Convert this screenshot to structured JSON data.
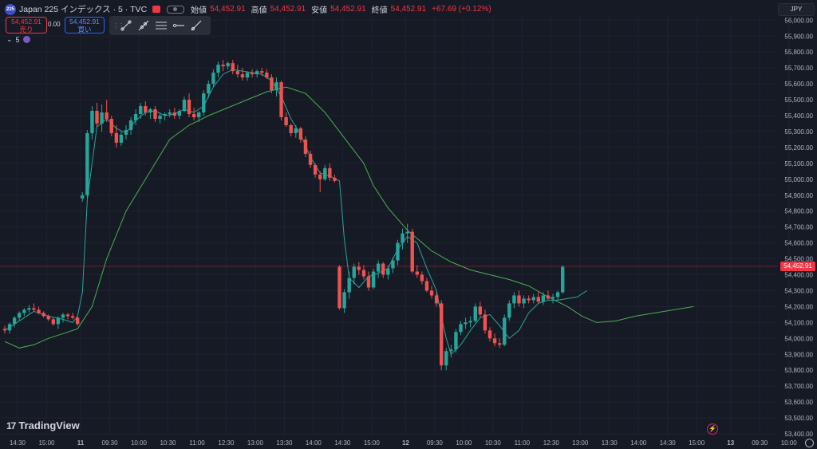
{
  "header": {
    "symbol_badge": "225",
    "title": "Japan 225 インデックス · 5 · TVC",
    "ohlc": [
      {
        "key": "始値",
        "value": "54,452.91"
      },
      {
        "key": "高値",
        "value": "54,452.91"
      },
      {
        "key": "安値",
        "value": "54,452.91"
      },
      {
        "key": "終値",
        "value": "54,452.91"
      }
    ],
    "change": "+67.69 (+0.12%)"
  },
  "trade": {
    "sell_price": "54,452.91",
    "sell_label": "売り",
    "spread": "0.00",
    "buy_price": "54,452.91",
    "buy_label": "買い"
  },
  "toolbar": {
    "tools": [
      "trend-line-icon",
      "ray-icon",
      "parallel-channel-icon",
      "horizontal-ray-icon",
      "extended-line-icon"
    ]
  },
  "indicator": {
    "chevron": "⌄",
    "label": "5"
  },
  "currency": "JPY",
  "price_label": "54,452.91",
  "brand": {
    "mark": "17",
    "name": "TradingView"
  },
  "colors": {
    "up": "#26a69a",
    "down": "#ef5350",
    "bg": "#161a25",
    "ma_fast": "#26a69a",
    "ma_slow": "#4caf50",
    "price_line": "#f23645"
  },
  "chart_data": {
    "type": "candlestick",
    "ylim": [
      53400,
      56050
    ],
    "y_ticks": [
      "56,000.00",
      "55,900.00",
      "55,800.00",
      "55,700.00",
      "55,600.00",
      "55,500.00",
      "55,400.00",
      "55,300.00",
      "55,200.00",
      "55,100.00",
      "55,000.00",
      "54,900.00",
      "54,800.00",
      "54,700.00",
      "54,600.00",
      "54,500.00",
      "54,400.00",
      "54,300.00",
      "54,200.00",
      "54,100.00",
      "54,000.00",
      "53,900.00",
      "53,800.00",
      "53,700.00",
      "53,600.00",
      "53,500.00",
      "53,400.00"
    ],
    "y_tick_values": [
      56000,
      55900,
      55800,
      55700,
      55600,
      55500,
      55400,
      55300,
      55200,
      55100,
      55000,
      54900,
      54800,
      54700,
      54600,
      54500,
      54400,
      54300,
      54200,
      54100,
      54000,
      53900,
      53800,
      53700,
      53600,
      53500,
      53400
    ],
    "x_ticks": [
      {
        "label": "14:30",
        "i": 0,
        "bold": false
      },
      {
        "label": "15:00",
        "i": 6,
        "bold": false
      },
      {
        "label": "11",
        "i": 13,
        "bold": true
      },
      {
        "label": "09:30",
        "i": 19,
        "bold": false
      },
      {
        "label": "10:00",
        "i": 25,
        "bold": false
      },
      {
        "label": "10:30",
        "i": 31,
        "bold": false
      },
      {
        "label": "11:00",
        "i": 37,
        "bold": false
      },
      {
        "label": "12:30",
        "i": 43,
        "bold": false
      },
      {
        "label": "13:00",
        "i": 49,
        "bold": false
      },
      {
        "label": "13:30",
        "i": 55,
        "bold": false
      },
      {
        "label": "14:00",
        "i": 61,
        "bold": false
      },
      {
        "label": "14:30",
        "i": 67,
        "bold": false
      },
      {
        "label": "15:00",
        "i": 73,
        "bold": false
      },
      {
        "label": "12",
        "i": 80,
        "bold": true
      },
      {
        "label": "09:30",
        "i": 86,
        "bold": false
      },
      {
        "label": "10:00",
        "i": 92,
        "bold": false
      },
      {
        "label": "10:30",
        "i": 98,
        "bold": false
      },
      {
        "label": "11:00",
        "i": 104,
        "bold": false
      },
      {
        "label": "12:30",
        "i": 110,
        "bold": false
      },
      {
        "label": "13:00",
        "i": 116,
        "bold": false
      },
      {
        "label": "13:30",
        "i": 122,
        "bold": false
      },
      {
        "label": "14:00",
        "i": 128,
        "bold": false
      },
      {
        "label": "14:30",
        "i": 134,
        "bold": false
      },
      {
        "label": "15:00",
        "i": 140,
        "bold": false
      },
      {
        "label": "13",
        "i": 147,
        "bold": true
      },
      {
        "label": "09:30",
        "i": 153,
        "bold": false
      },
      {
        "label": "10:00",
        "i": 159,
        "bold": false
      }
    ],
    "last_price": 54452.91,
    "candles": [
      [
        54060,
        54080,
        54030,
        54050
      ],
      [
        54050,
        54100,
        54030,
        54090
      ],
      [
        54090,
        54140,
        54070,
        54130
      ],
      [
        54130,
        54170,
        54110,
        54160
      ],
      [
        54160,
        54190,
        54140,
        54180
      ],
      [
        54180,
        54210,
        54160,
        54190
      ],
      [
        54190,
        54220,
        54170,
        54180
      ],
      [
        54180,
        54200,
        54150,
        54160
      ],
      [
        54160,
        54170,
        54130,
        54140
      ],
      [
        54140,
        54150,
        54110,
        54120
      ],
      [
        54120,
        54130,
        54080,
        54090
      ],
      [
        54090,
        54140,
        54060,
        54130
      ],
      [
        54130,
        54160,
        54100,
        54150
      ],
      [
        54150,
        54160,
        54120,
        54140
      ],
      [
        54140,
        54160,
        54120,
        54130
      ],
      [
        54130,
        54140,
        54080,
        54090
      ],
      [
        54880,
        54920,
        54860,
        54900
      ],
      [
        54900,
        55310,
        54880,
        55290
      ],
      [
        55290,
        55460,
        55250,
        55430
      ],
      [
        55430,
        55480,
        55330,
        55350
      ],
      [
        55350,
        55470,
        55300,
        55420
      ],
      [
        55420,
        55500,
        55360,
        55380
      ],
      [
        55380,
        55400,
        55270,
        55290
      ],
      [
        55290,
        55340,
        55200,
        55230
      ],
      [
        55230,
        55300,
        55210,
        55280
      ],
      [
        55280,
        55340,
        55250,
        55310
      ],
      [
        55310,
        55390,
        55280,
        55370
      ],
      [
        55370,
        55440,
        55340,
        55410
      ],
      [
        55410,
        55480,
        55380,
        55460
      ],
      [
        55460,
        55490,
        55400,
        55420
      ],
      [
        55420,
        55450,
        55380,
        55440
      ],
      [
        55440,
        55460,
        55360,
        55380
      ],
      [
        55380,
        55420,
        55350,
        55400
      ],
      [
        55400,
        55420,
        55370,
        55410
      ],
      [
        55410,
        55440,
        55390,
        55420
      ],
      [
        55420,
        55450,
        55380,
        55400
      ],
      [
        55400,
        55440,
        55380,
        55430
      ],
      [
        55430,
        55520,
        55420,
        55500
      ],
      [
        55500,
        55540,
        55390,
        55410
      ],
      [
        55410,
        55450,
        55370,
        55390
      ],
      [
        55390,
        55430,
        55360,
        55420
      ],
      [
        55420,
        55560,
        55400,
        55540
      ],
      [
        55540,
        55620,
        55510,
        55600
      ],
      [
        55600,
        55690,
        55580,
        55670
      ],
      [
        55670,
        55740,
        55640,
        55720
      ],
      [
        55720,
        55750,
        55680,
        55710
      ],
      [
        55710,
        55740,
        55690,
        55730
      ],
      [
        55730,
        55750,
        55660,
        55680
      ],
      [
        55680,
        55720,
        55640,
        55660
      ],
      [
        55660,
        55700,
        55620,
        55640
      ],
      [
        55640,
        55680,
        55620,
        55670
      ],
      [
        55670,
        55690,
        55640,
        55660
      ],
      [
        55660,
        55690,
        55640,
        55680
      ],
      [
        55680,
        55700,
        55650,
        55670
      ],
      [
        55670,
        55690,
        55630,
        55640
      ],
      [
        55640,
        55660,
        55540,
        55560
      ],
      [
        55560,
        55640,
        55520,
        55610
      ],
      [
        55610,
        55620,
        55370,
        55390
      ],
      [
        55390,
        55420,
        55330,
        55340
      ],
      [
        55340,
        55350,
        55270,
        55290
      ],
      [
        55290,
        55340,
        55260,
        55320
      ],
      [
        55320,
        55330,
        55230,
        55250
      ],
      [
        55250,
        55270,
        55140,
        55160
      ],
      [
        55160,
        55180,
        55070,
        55090
      ],
      [
        55090,
        55100,
        55010,
        55030
      ],
      [
        55030,
        55050,
        54920,
        55000
      ],
      [
        55000,
        55090,
        54990,
        55070
      ],
      [
        55070,
        55100,
        54990,
        55010
      ],
      [
        55010,
        55030,
        54980,
        54990
      ],
      [
        54450,
        54460,
        54180,
        54190
      ],
      [
        54190,
        54310,
        54160,
        54290
      ],
      [
        54290,
        54420,
        54250,
        54380
      ],
      [
        54380,
        54470,
        54340,
        54450
      ],
      [
        54450,
        54480,
        54400,
        54430
      ],
      [
        54430,
        54460,
        54370,
        54390
      ],
      [
        54390,
        54420,
        54300,
        54320
      ],
      [
        54320,
        54440,
        54310,
        54420
      ],
      [
        54420,
        54490,
        54380,
        54470
      ],
      [
        54470,
        54480,
        54380,
        54400
      ],
      [
        54400,
        54460,
        54370,
        54440
      ],
      [
        54440,
        54510,
        54410,
        54490
      ],
      [
        54490,
        54620,
        54460,
        54600
      ],
      [
        54600,
        54690,
        54560,
        54660
      ],
      [
        54660,
        54720,
        54600,
        54670
      ],
      [
        54670,
        54690,
        54410,
        54420
      ],
      [
        54420,
        54460,
        54380,
        54400
      ],
      [
        54400,
        54420,
        54340,
        54360
      ],
      [
        54360,
        54380,
        54290,
        54300
      ],
      [
        54300,
        54330,
        54250,
        54270
      ],
      [
        54270,
        54290,
        54200,
        54220
      ],
      [
        54220,
        54240,
        53800,
        53830
      ],
      [
        53830,
        53940,
        53800,
        53920
      ],
      [
        53920,
        53960,
        53880,
        53930
      ],
      [
        53930,
        54060,
        53910,
        54040
      ],
      [
        54040,
        54110,
        54020,
        54090
      ],
      [
        54090,
        54130,
        54060,
        54100
      ],
      [
        54100,
        54140,
        54070,
        54110
      ],
      [
        54110,
        54220,
        54100,
        54200
      ],
      [
        54200,
        54230,
        54130,
        54150
      ],
      [
        54150,
        54180,
        54030,
        54050
      ],
      [
        54050,
        54070,
        53980,
        54000
      ],
      [
        54000,
        54030,
        53950,
        53970
      ],
      [
        53970,
        54000,
        53940,
        53960
      ],
      [
        53960,
        54150,
        53950,
        54130
      ],
      [
        54130,
        54240,
        54110,
        54220
      ],
      [
        54220,
        54290,
        54190,
        54270
      ],
      [
        54270,
        54300,
        54200,
        54220
      ],
      [
        54220,
        54270,
        54190,
        54250
      ],
      [
        54250,
        54270,
        54220,
        54240
      ],
      [
        54240,
        54280,
        54220,
        54260
      ],
      [
        54260,
        54290,
        54220,
        54230
      ],
      [
        54230,
        54290,
        54210,
        54270
      ],
      [
        54270,
        54300,
        54240,
        54250
      ],
      [
        54250,
        54280,
        54220,
        54260
      ],
      [
        54260,
        54300,
        54240,
        54290
      ],
      [
        54290,
        54460,
        54280,
        54450
      ]
    ],
    "ma_slow": [
      [
        0,
        53980
      ],
      [
        3,
        53940
      ],
      [
        6,
        53960
      ],
      [
        9,
        54000
      ],
      [
        12,
        54030
      ],
      [
        15,
        54060
      ],
      [
        18,
        54200
      ],
      [
        21,
        54500
      ],
      [
        25,
        54800
      ],
      [
        30,
        55050
      ],
      [
        34,
        55250
      ],
      [
        38,
        55340
      ],
      [
        42,
        55400
      ],
      [
        46,
        55450
      ],
      [
        50,
        55500
      ],
      [
        54,
        55550
      ],
      [
        58,
        55580
      ],
      [
        62,
        55540
      ],
      [
        66,
        55420
      ],
      [
        70,
        55260
      ],
      [
        74,
        55100
      ],
      [
        76,
        54960
      ],
      [
        79,
        54820
      ],
      [
        83,
        54680
      ],
      [
        88,
        54550
      ],
      [
        92,
        54480
      ],
      [
        96,
        54430
      ],
      [
        100,
        54400
      ],
      [
        104,
        54370
      ],
      [
        108,
        54330
      ],
      [
        112,
        54260
      ],
      [
        116,
        54200
      ],
      [
        119,
        54140
      ],
      [
        122,
        54100
      ],
      [
        126,
        54110
      ],
      [
        130,
        54140
      ],
      [
        134,
        54160
      ],
      [
        138,
        54180
      ],
      [
        142,
        54200
      ]
    ],
    "ma_fast": [
      [
        0,
        54050
      ],
      [
        3,
        54110
      ],
      [
        6,
        54170
      ],
      [
        9,
        54140
      ],
      [
        12,
        54120
      ],
      [
        14,
        54100
      ],
      [
        15,
        54140
      ],
      [
        16,
        54290
      ],
      [
        17,
        54870
      ],
      [
        18,
        55100
      ],
      [
        19,
        55330
      ],
      [
        21,
        55380
      ],
      [
        23,
        55320
      ],
      [
        25,
        55290
      ],
      [
        27,
        55370
      ],
      [
        29,
        55420
      ],
      [
        31,
        55430
      ],
      [
        33,
        55400
      ],
      [
        35,
        55410
      ],
      [
        37,
        55440
      ],
      [
        39,
        55420
      ],
      [
        41,
        55460
      ],
      [
        43,
        55580
      ],
      [
        45,
        55660
      ],
      [
        47,
        55690
      ],
      [
        49,
        55680
      ],
      [
        51,
        55670
      ],
      [
        53,
        55660
      ],
      [
        55,
        55620
      ],
      [
        57,
        55520
      ],
      [
        59,
        55380
      ],
      [
        61,
        55280
      ],
      [
        63,
        55140
      ],
      [
        65,
        55040
      ],
      [
        67,
        55020
      ],
      [
        69,
        54990
      ],
      [
        70,
        54620
      ],
      [
        71,
        54380
      ],
      [
        73,
        54320
      ],
      [
        75,
        54390
      ],
      [
        77,
        54410
      ],
      [
        79,
        54440
      ],
      [
        81,
        54560
      ],
      [
        83,
        54640
      ],
      [
        85,
        54600
      ],
      [
        87,
        54440
      ],
      [
        89,
        54300
      ],
      [
        90,
        54140
      ],
      [
        91,
        54000
      ],
      [
        92,
        53900
      ],
      [
        94,
        53960
      ],
      [
        96,
        54050
      ],
      [
        98,
        54130
      ],
      [
        100,
        54150
      ],
      [
        102,
        54080
      ],
      [
        104,
        54000
      ],
      [
        106,
        54050
      ],
      [
        108,
        54160
      ],
      [
        110,
        54220
      ],
      [
        112,
        54240
      ],
      [
        114,
        54240
      ],
      [
        116,
        54250
      ],
      [
        118,
        54260
      ],
      [
        120,
        54300
      ]
    ]
  }
}
